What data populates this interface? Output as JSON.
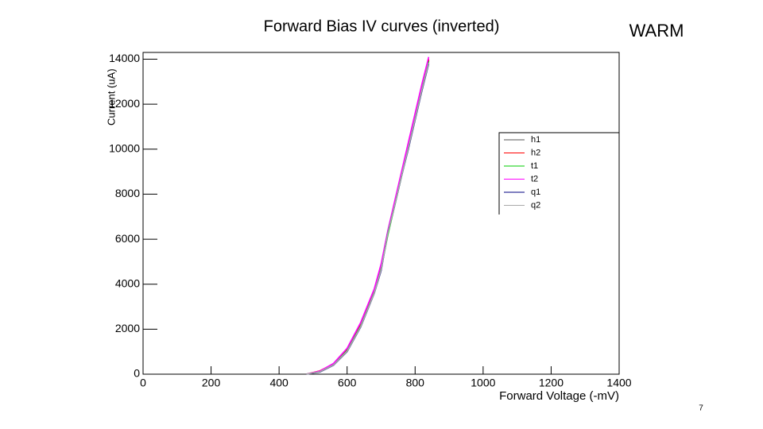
{
  "chart_data": {
    "type": "line",
    "title": "Forward Bias IV curves (inverted)",
    "annotation": "WARM",
    "page_number": "7",
    "x_label": "Forward Voltage (-mV)",
    "y_label": "Current (uA)",
    "x": [
      480,
      520,
      560,
      600,
      640,
      680,
      700,
      720,
      740,
      760,
      780,
      800,
      820,
      840
    ],
    "series": [
      {
        "name": "h1",
        "color": "#555555",
        "values": [
          0,
          130,
          440,
          1080,
          2180,
          3680,
          4750,
          6250,
          7550,
          8850,
          10150,
          11450,
          12750,
          13950
        ]
      },
      {
        "name": "h2",
        "color": "#ff0000",
        "values": [
          0,
          150,
          450,
          1100,
          2200,
          3700,
          4800,
          6300,
          7600,
          8900,
          10200,
          11500,
          12800,
          14000
        ]
      },
      {
        "name": "t1",
        "color": "#00cc00",
        "values": [
          0,
          120,
          420,
          1050,
          2150,
          3650,
          4700,
          6200,
          7500,
          8800,
          10100,
          11400,
          12700,
          13900
        ]
      },
      {
        "name": "t2",
        "color": "#ff00ff",
        "values": [
          0,
          140,
          480,
          1150,
          2300,
          3800,
          4900,
          6400,
          7700,
          9000,
          10300,
          11600,
          12900,
          14100
        ]
      },
      {
        "name": "q1",
        "color": "#000080",
        "values": [
          0,
          100,
          400,
          1000,
          2100,
          3600,
          4600,
          6300,
          7500,
          8800,
          10000,
          11300,
          12600,
          13800
        ]
      },
      {
        "name": "q2",
        "color": "#aaaaaa",
        "values": [
          0,
          110,
          410,
          1020,
          2120,
          3620,
          4650,
          6280,
          7520,
          8820,
          10050,
          11350,
          12650,
          13850
        ]
      }
    ],
    "xlim": [
      0,
      1400
    ],
    "xticks": [
      0,
      200,
      400,
      600,
      800,
      1000,
      1200,
      1400
    ],
    "ylim": [
      0,
      14300
    ],
    "yticks": [
      0,
      2000,
      4000,
      6000,
      8000,
      10000,
      12000,
      14000
    ]
  }
}
